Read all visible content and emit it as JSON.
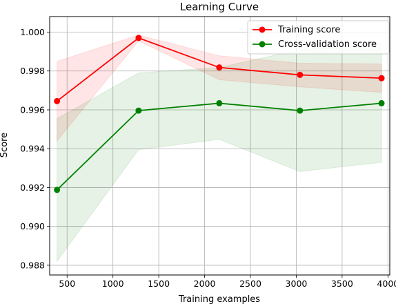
{
  "chart_data": {
    "type": "line",
    "title": "Learning Curve",
    "xlabel": "Training examples",
    "ylabel": "Score",
    "xlim": [
      310,
      4020
    ],
    "ylim": [
      0.9875,
      1.0008
    ],
    "xticks": [
      500,
      1000,
      1500,
      2000,
      2500,
      3000,
      3500,
      4000
    ],
    "xtick_labels": [
      "500",
      "1000",
      "1500",
      "2000",
      "2500",
      "3000",
      "3500",
      "4000"
    ],
    "yticks": [
      0.988,
      0.99,
      0.992,
      0.994,
      0.996,
      0.998,
      1.0
    ],
    "ytick_labels": [
      "0.988",
      "0.990",
      "0.992",
      "0.994",
      "0.996",
      "0.998",
      "1.000"
    ],
    "grid": true,
    "legend_position": "top-right",
    "x": [
      390,
      1280,
      2160,
      3040,
      3930
    ],
    "series": [
      {
        "name": "Training score",
        "color": "#ff0000",
        "values": [
          0.99645,
          0.9997,
          0.99818,
          0.9978,
          0.99763
        ],
        "band_lower": [
          0.9944,
          0.99955,
          0.99755,
          0.99718,
          0.9969
        ],
        "band_upper": [
          0.9985,
          0.99985,
          0.99878,
          0.9984,
          0.99836
        ]
      },
      {
        "name": "Cross-validation score",
        "color": "#008000",
        "values": [
          0.99188,
          0.99596,
          0.99634,
          0.99596,
          0.99634
        ],
        "band_lower": [
          0.9882,
          0.99395,
          0.99448,
          0.99282,
          0.9933
        ],
        "band_upper": [
          0.99555,
          0.9979,
          0.99818,
          0.9991,
          0.9994
        ]
      }
    ],
    "band_colors": [
      "#ff0000",
      "#008000"
    ]
  }
}
